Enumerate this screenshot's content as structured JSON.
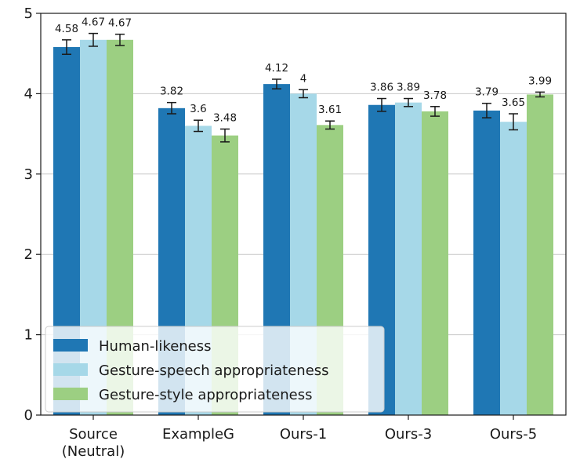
{
  "chart_data": {
    "type": "bar",
    "categories": [
      [
        "Source",
        "(Neutral)"
      ],
      [
        "ExampleG"
      ],
      [
        "Ours-1"
      ],
      [
        "Ours-3"
      ],
      [
        "Ours-5"
      ]
    ],
    "series": [
      {
        "name": "Human-likeness",
        "color": "#1f77b4",
        "values": [
          4.58,
          3.82,
          4.12,
          3.86,
          3.79
        ],
        "labels": [
          "4.58",
          "3.82",
          "4.12",
          "3.86",
          "3.79"
        ],
        "err": [
          0.09,
          0.07,
          0.06,
          0.08,
          0.09
        ]
      },
      {
        "name": "Gesture-speech appropriateness",
        "color": "#a6d8e8",
        "values": [
          4.67,
          3.6,
          4.0,
          3.89,
          3.65
        ],
        "labels": [
          "4.67",
          "3.6",
          "4",
          "3.89",
          "3.65"
        ],
        "err": [
          0.08,
          0.07,
          0.05,
          0.05,
          0.1
        ]
      },
      {
        "name": "Gesture-style appropriateness",
        "color": "#9ccf82",
        "values": [
          4.67,
          3.48,
          3.61,
          3.78,
          3.99
        ],
        "labels": [
          "4.67",
          "3.48",
          "3.61",
          "3.78",
          "3.99"
        ],
        "err": [
          0.07,
          0.08,
          0.05,
          0.06,
          0.03
        ]
      }
    ],
    "title": "",
    "xlabel": "",
    "ylabel": "",
    "ylim": [
      0,
      5
    ],
    "yticks": [
      "0",
      "1",
      "2",
      "3",
      "4",
      "5"
    ],
    "grid": "horizontal",
    "legend": "lower-left"
  }
}
